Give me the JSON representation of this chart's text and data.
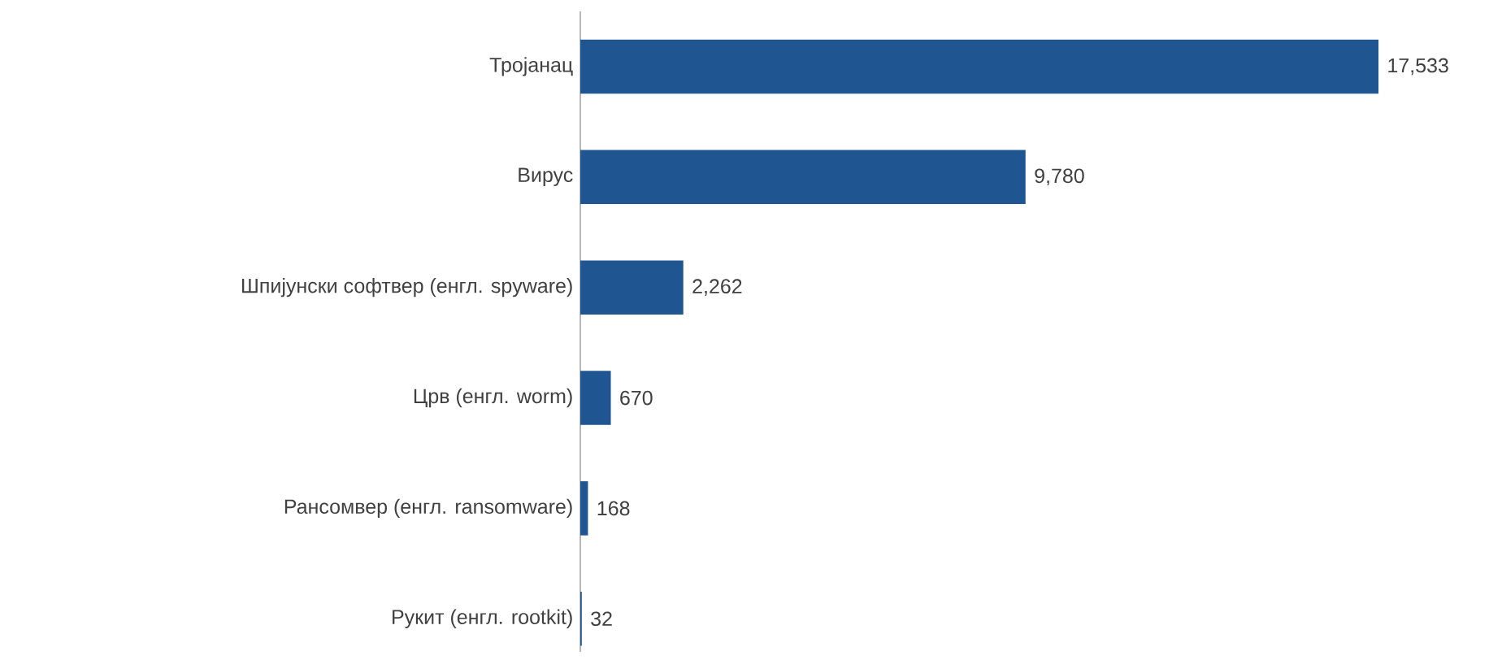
{
  "chart_data": {
    "type": "bar",
    "orientation": "horizontal",
    "categories": [
      "Тројанац",
      "Вирус",
      "Шпијунски софтвер (енгл. spyware)",
      "Црв (енгл. worm)",
      "Рансомвер (енгл. ransomware)",
      "Рукит (енгл. rootkit)"
    ],
    "values": [
      17533,
      9780,
      2262,
      670,
      168,
      32
    ],
    "value_labels": [
      "17,533",
      "9,780",
      "2,262",
      "670",
      "168",
      "32"
    ],
    "color": "#1f5591"
  }
}
